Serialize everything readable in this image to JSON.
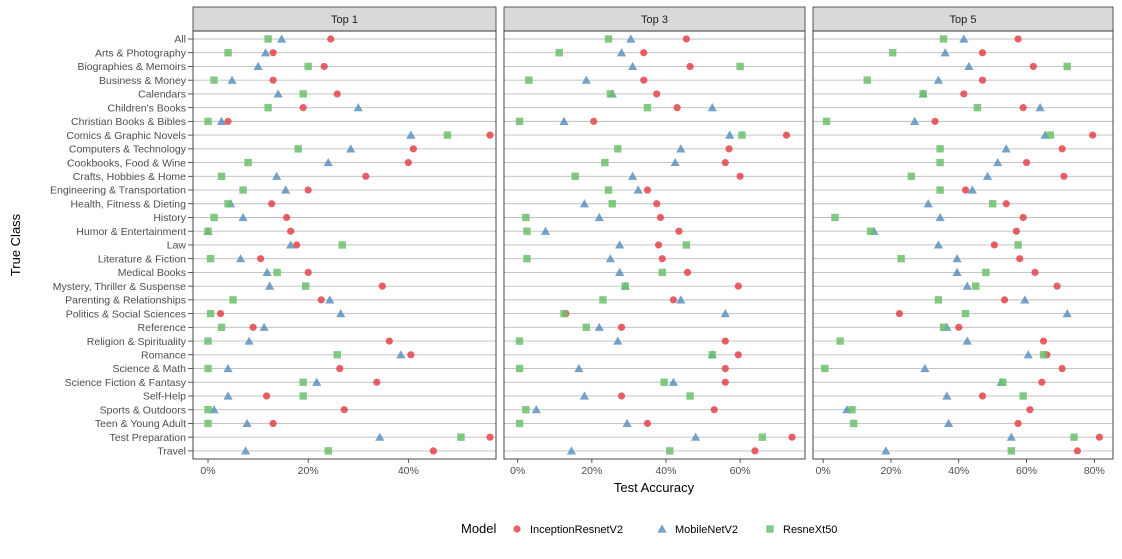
{
  "chart_data": {
    "type": "scatter",
    "xlabel": "Test Accuracy",
    "ylabel": "True Class",
    "facets": [
      "Top 1",
      "Top 3",
      "Top 5"
    ],
    "legend": {
      "title": "Model",
      "position": "bottom"
    },
    "grid": true,
    "categories": [
      "All",
      "Arts & Photography",
      "Biographies & Memoirs",
      "Business & Money",
      "Calendars",
      "Children's Books",
      "Christian Books & Bibles",
      "Comics & Graphic Novels",
      "Computers & Technology",
      "Cookbooks, Food & Wine",
      "Crafts, Hobbies & Home",
      "Engineering & Transportation",
      "Health, Fitness & Dieting",
      "History",
      "Humor & Entertainment",
      "Law",
      "Literature & Fiction",
      "Medical Books",
      "Mystery, Thriller & Suspense",
      "Parenting & Relationships",
      "Politics & Social Sciences",
      "Reference",
      "Religion & Spirituality",
      "Romance",
      "Science & Math",
      "Science Fiction & Fantasy",
      "Self-Help",
      "Sports & Outdoors",
      "Teen & Young Adult",
      "Test Preparation",
      "Travel"
    ],
    "panels": [
      {
        "facet": "Top 1",
        "xlim": [
          -0.03,
          0.575
        ],
        "ticks": [
          0,
          0.2,
          0.4
        ],
        "tick_labels": [
          "0%",
          "20%",
          "40%"
        ],
        "series": [
          {
            "name": "InceptionResnetV2",
            "color": "#E4444B",
            "shape": "circle",
            "values": [
              0.245,
              0.13,
              0.232,
              0.13,
              0.258,
              0.19,
              0.04,
              0.563,
              0.41,
              0.4,
              0.315,
              0.2,
              0.127,
              0.157,
              0.165,
              0.177,
              0.105,
              0.2,
              0.348,
              0.226,
              0.025,
              0.09,
              0.362,
              0.405,
              0.263,
              0.337,
              0.117,
              0.272,
              0.13,
              0.563,
              0.45
            ]
          },
          {
            "name": "MobileNetV2",
            "color": "#5B92C2",
            "shape": "triangle",
            "values": [
              0.147,
              0.115,
              0.1,
              0.048,
              0.14,
              0.3,
              0.027,
              0.405,
              0.285,
              0.24,
              0.137,
              0.155,
              0.045,
              0.07,
              0.0,
              0.165,
              0.065,
              0.118,
              0.123,
              0.243,
              0.265,
              0.112,
              0.082,
              0.385,
              0.04,
              0.217,
              0.04,
              0.012,
              0.078,
              0.343,
              0.075
            ]
          },
          {
            "name": "ResneXt50",
            "color": "#6CC16C",
            "shape": "square",
            "values": [
              0.12,
              0.04,
              0.2,
              0.012,
              0.19,
              0.12,
              0.0,
              0.478,
              0.18,
              0.08,
              0.027,
              0.07,
              0.04,
              0.012,
              0.0,
              0.268,
              0.005,
              0.138,
              0.195,
              0.05,
              0.005,
              0.027,
              0.0,
              0.258,
              0.0,
              0.19,
              0.19,
              0.0,
              0.0,
              0.505,
              0.24
            ]
          }
        ]
      },
      {
        "facet": "Top 3",
        "xlim": [
          -0.037,
          0.775
        ],
        "ticks": [
          0,
          0.2,
          0.4,
          0.6
        ],
        "tick_labels": [
          "0%",
          "20%",
          "40%",
          "60%"
        ],
        "series": [
          {
            "name": "InceptionResnetV2",
            "color": "#E4444B",
            "shape": "circle",
            "values": [
              0.455,
              0.34,
              0.465,
              0.34,
              0.375,
              0.43,
              0.205,
              0.725,
              0.57,
              0.56,
              0.6,
              0.35,
              0.375,
              0.385,
              0.435,
              0.38,
              0.39,
              0.458,
              0.595,
              0.42,
              0.13,
              0.28,
              0.56,
              0.595,
              0.56,
              0.56,
              0.28,
              0.53,
              0.35,
              0.74,
              0.64
            ]
          },
          {
            "name": "MobileNetV2",
            "color": "#5B92C2",
            "shape": "triangle",
            "values": [
              0.305,
              0.28,
              0.31,
              0.185,
              0.255,
              0.525,
              0.125,
              0.572,
              0.44,
              0.425,
              0.31,
              0.325,
              0.18,
              0.22,
              0.075,
              0.275,
              0.25,
              0.275,
              0.29,
              0.44,
              0.56,
              0.22,
              0.27,
              0.525,
              0.165,
              0.42,
              0.18,
              0.05,
              0.295,
              0.48,
              0.145
            ]
          },
          {
            "name": "ResneXt50",
            "color": "#6CC16C",
            "shape": "square",
            "values": [
              0.245,
              0.112,
              0.6,
              0.03,
              0.25,
              0.35,
              0.005,
              0.605,
              0.27,
              0.235,
              0.155,
              0.245,
              0.255,
              0.022,
              0.025,
              0.455,
              0.025,
              0.39,
              0.29,
              0.23,
              0.125,
              0.185,
              0.005,
              0.525,
              0.005,
              0.395,
              0.465,
              0.022,
              0.005,
              0.66,
              0.41
            ]
          }
        ]
      },
      {
        "facet": "Top 5",
        "xlim": [
          -0.03,
          0.855
        ],
        "ticks": [
          0,
          0.2,
          0.4,
          0.6,
          0.8
        ],
        "tick_labels": [
          "0%",
          "20%",
          "40%",
          "60%",
          "80%"
        ],
        "series": [
          {
            "name": "InceptionResnetV2",
            "color": "#E4444B",
            "shape": "circle",
            "values": [
              0.575,
              0.47,
              0.62,
              0.47,
              0.415,
              0.59,
              0.33,
              0.795,
              0.705,
              0.6,
              0.71,
              0.42,
              0.54,
              0.59,
              0.57,
              0.505,
              0.58,
              0.625,
              0.69,
              0.535,
              0.225,
              0.4,
              0.65,
              0.66,
              0.705,
              0.645,
              0.47,
              0.61,
              0.575,
              0.815,
              0.75
            ]
          },
          {
            "name": "MobileNetV2",
            "color": "#5B92C2",
            "shape": "triangle",
            "values": [
              0.415,
              0.36,
              0.43,
              0.34,
              0.295,
              0.64,
              0.27,
              0.655,
              0.54,
              0.515,
              0.485,
              0.44,
              0.31,
              0.345,
              0.15,
              0.34,
              0.395,
              0.395,
              0.425,
              0.595,
              0.72,
              0.365,
              0.425,
              0.605,
              0.3,
              0.525,
              0.365,
              0.07,
              0.37,
              0.555,
              0.185
            ]
          },
          {
            "name": "ResneXt50",
            "color": "#6CC16C",
            "shape": "square",
            "values": [
              0.355,
              0.205,
              0.72,
              0.13,
              0.295,
              0.455,
              0.01,
              0.67,
              0.345,
              0.345,
              0.26,
              0.345,
              0.5,
              0.035,
              0.14,
              0.575,
              0.23,
              0.48,
              0.45,
              0.34,
              0.42,
              0.355,
              0.05,
              0.65,
              0.005,
              0.53,
              0.59,
              0.085,
              0.09,
              0.74,
              0.555
            ]
          }
        ]
      }
    ]
  }
}
